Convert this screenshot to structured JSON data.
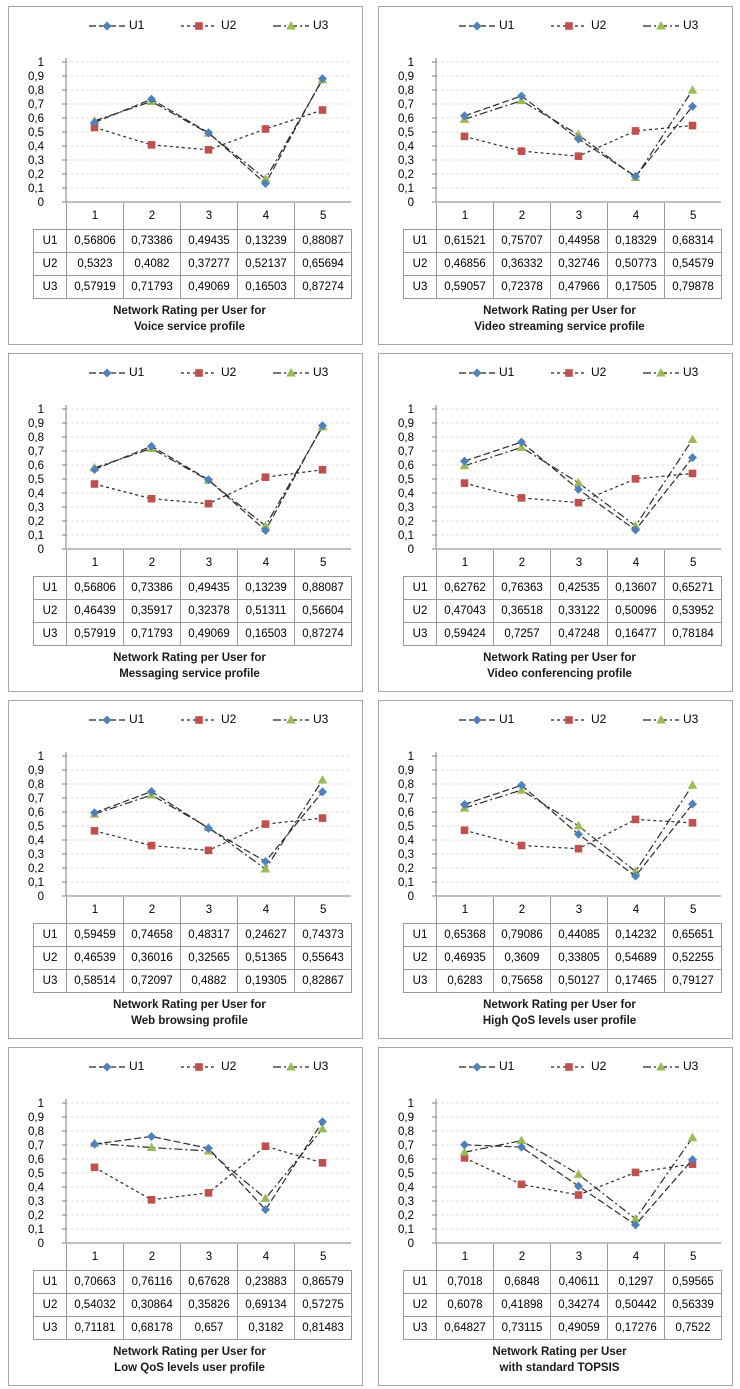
{
  "colors": {
    "U1": "#4f81bd",
    "U2": "#c0504d",
    "U3": "#9bbb59",
    "grid": "#e1e1e1",
    "axis": "#808080"
  },
  "legend": [
    "U1",
    "U2",
    "U3"
  ],
  "chart_data": [
    {
      "type": "line",
      "title_lines": [
        "Network Rating per User for",
        "Voice service profile"
      ],
      "categories": [
        "1",
        "2",
        "3",
        "4",
        "5"
      ],
      "ylim": [
        0,
        1
      ],
      "yticks": [
        "0",
        "0,1",
        "0,2",
        "0,3",
        "0,4",
        "0,5",
        "0,6",
        "0,7",
        "0,8",
        "0,9",
        "1"
      ],
      "grid": true,
      "legend_position": "top",
      "series": [
        {
          "name": "U1",
          "values": [
            0.56806,
            0.73386,
            0.49435,
            0.13239,
            0.88087
          ],
          "labels": [
            "0,56806",
            "0,73386",
            "0,49435",
            "0,13239",
            "0,88087"
          ]
        },
        {
          "name": "U2",
          "values": [
            0.5323,
            0.4082,
            0.37277,
            0.52137,
            0.65694
          ],
          "labels": [
            "0,5323",
            "0,4082",
            "0,37277",
            "0,52137",
            "0,65694"
          ]
        },
        {
          "name": "U3",
          "values": [
            0.57919,
            0.71793,
            0.49069,
            0.16503,
            0.87274
          ],
          "labels": [
            "0,57919",
            "0,71793",
            "0,49069",
            "0,16503",
            "0,87274"
          ]
        }
      ]
    },
    {
      "type": "line",
      "title_lines": [
        "Network Rating per User for",
        "Video streaming service profile"
      ],
      "categories": [
        "1",
        "2",
        "3",
        "4",
        "5"
      ],
      "ylim": [
        0,
        1
      ],
      "yticks": [
        "0",
        "0,1",
        "0,2",
        "0,3",
        "0,4",
        "0,5",
        "0,6",
        "0,7",
        "0,8",
        "0,9",
        "1"
      ],
      "grid": true,
      "legend_position": "top",
      "series": [
        {
          "name": "U1",
          "values": [
            0.61521,
            0.75707,
            0.44958,
            0.18329,
            0.68314
          ],
          "labels": [
            "0,61521",
            "0,75707",
            "0,44958",
            "0,18329",
            "0,68314"
          ]
        },
        {
          "name": "U2",
          "values": [
            0.46856,
            0.36332,
            0.32746,
            0.50773,
            0.54579
          ],
          "labels": [
            "0,46856",
            "0,36332",
            "0,32746",
            "0,50773",
            "0,54579"
          ]
        },
        {
          "name": "U3",
          "values": [
            0.59057,
            0.72378,
            0.47966,
            0.17505,
            0.79878
          ],
          "labels": [
            "0,59057",
            "0,72378",
            "0,47966",
            "0,17505",
            "0,79878"
          ]
        }
      ]
    },
    {
      "type": "line",
      "title_lines": [
        "Network Rating per User for",
        "Messaging service profile"
      ],
      "categories": [
        "1",
        "2",
        "3",
        "4",
        "5"
      ],
      "ylim": [
        0,
        1
      ],
      "yticks": [
        "0",
        "0,1",
        "0,2",
        "0,3",
        "0,4",
        "0,5",
        "0,6",
        "0,7",
        "0,8",
        "0,9",
        "1"
      ],
      "grid": true,
      "legend_position": "top",
      "series": [
        {
          "name": "U1",
          "values": [
            0.56806,
            0.73386,
            0.49435,
            0.13239,
            0.88087
          ],
          "labels": [
            "0,56806",
            "0,73386",
            "0,49435",
            "0,13239",
            "0,88087"
          ]
        },
        {
          "name": "U2",
          "values": [
            0.46439,
            0.35917,
            0.32378,
            0.51311,
            0.56604
          ],
          "labels": [
            "0,46439",
            "0,35917",
            "0,32378",
            "0,51311",
            "0,56604"
          ]
        },
        {
          "name": "U3",
          "values": [
            0.57919,
            0.71793,
            0.49069,
            0.16503,
            0.87274
          ],
          "labels": [
            "0,57919",
            "0,71793",
            "0,49069",
            "0,16503",
            "0,87274"
          ]
        }
      ]
    },
    {
      "type": "line",
      "title_lines": [
        "Network Rating per User for",
        "Video conferencing profile"
      ],
      "categories": [
        "1",
        "2",
        "3",
        "4",
        "5"
      ],
      "ylim": [
        0,
        1
      ],
      "yticks": [
        "0",
        "0,1",
        "0,2",
        "0,3",
        "0,4",
        "0,5",
        "0,6",
        "0,7",
        "0,8",
        "0,9",
        "1"
      ],
      "grid": true,
      "legend_position": "top",
      "series": [
        {
          "name": "U1",
          "values": [
            0.62762,
            0.76363,
            0.42535,
            0.13607,
            0.65271
          ],
          "labels": [
            "0,62762",
            "0,76363",
            "0,42535",
            "0,13607",
            "0,65271"
          ]
        },
        {
          "name": "U2",
          "values": [
            0.47043,
            0.36518,
            0.33122,
            0.50096,
            0.53952
          ],
          "labels": [
            "0,47043",
            "0,36518",
            "0,33122",
            "0,50096",
            "0,53952"
          ]
        },
        {
          "name": "U3",
          "values": [
            0.59424,
            0.7257,
            0.47248,
            0.16477,
            0.78184
          ],
          "labels": [
            "0,59424",
            "0,7257",
            "0,47248",
            "0,16477",
            "0,78184"
          ]
        }
      ]
    },
    {
      "type": "line",
      "title_lines": [
        "Network Rating per User for",
        "Web browsing profile"
      ],
      "categories": [
        "1",
        "2",
        "3",
        "4",
        "5"
      ],
      "ylim": [
        0,
        1
      ],
      "yticks": [
        "0",
        "0,1",
        "0,2",
        "0,3",
        "0,4",
        "0,5",
        "0,6",
        "0,7",
        "0,8",
        "0,9",
        "1"
      ],
      "grid": true,
      "legend_position": "top",
      "series": [
        {
          "name": "U1",
          "values": [
            0.59459,
            0.74658,
            0.48317,
            0.24627,
            0.74373
          ],
          "labels": [
            "0,59459",
            "0,74658",
            "0,48317",
            "0,24627",
            "0,74373"
          ]
        },
        {
          "name": "U2",
          "values": [
            0.46539,
            0.36016,
            0.32565,
            0.51365,
            0.55643
          ],
          "labels": [
            "0,46539",
            "0,36016",
            "0,32565",
            "0,51365",
            "0,55643"
          ]
        },
        {
          "name": "U3",
          "values": [
            0.58514,
            0.72097,
            0.4882,
            0.19305,
            0.82867
          ],
          "labels": [
            "0,58514",
            "0,72097",
            "0,4882",
            "0,19305",
            "0,82867"
          ]
        }
      ]
    },
    {
      "type": "line",
      "title_lines": [
        "Network Rating per User for",
        "High QoS levels user profile"
      ],
      "categories": [
        "1",
        "2",
        "3",
        "4",
        "5"
      ],
      "ylim": [
        0,
        1
      ],
      "yticks": [
        "0",
        "0,1",
        "0,2",
        "0,3",
        "0,4",
        "0,5",
        "0,6",
        "0,7",
        "0,8",
        "0,9",
        "1"
      ],
      "grid": true,
      "legend_position": "top",
      "series": [
        {
          "name": "U1",
          "values": [
            0.65368,
            0.79086,
            0.44085,
            0.14232,
            0.65651
          ],
          "labels": [
            "0,65368",
            "0,79086",
            "0,44085",
            "0,14232",
            "0,65651"
          ]
        },
        {
          "name": "U2",
          "values": [
            0.46935,
            0.3609,
            0.33805,
            0.54689,
            0.52255
          ],
          "labels": [
            "0,46935",
            "0,3609",
            "0,33805",
            "0,54689",
            "0,52255"
          ]
        },
        {
          "name": "U3",
          "values": [
            0.6283,
            0.75658,
            0.50127,
            0.17465,
            0.79127
          ],
          "labels": [
            "0,6283",
            "0,75658",
            "0,50127",
            "0,17465",
            "0,79127"
          ]
        }
      ]
    },
    {
      "type": "line",
      "title_lines": [
        "Network Rating per User for",
        "Low QoS levels user profile"
      ],
      "categories": [
        "1",
        "2",
        "3",
        "4",
        "5"
      ],
      "ylim": [
        0,
        1
      ],
      "yticks": [
        "0",
        "0,1",
        "0,2",
        "0,3",
        "0,4",
        "0,5",
        "0,6",
        "0,7",
        "0,8",
        "0,9",
        "1"
      ],
      "grid": true,
      "legend_position": "top",
      "series": [
        {
          "name": "U1",
          "values": [
            0.70663,
            0.76116,
            0.67628,
            0.23883,
            0.86579
          ],
          "labels": [
            "0,70663",
            "0,76116",
            "0,67628",
            "0,23883",
            "0,86579"
          ]
        },
        {
          "name": "U2",
          "values": [
            0.54032,
            0.30864,
            0.35826,
            0.69134,
            0.57275
          ],
          "labels": [
            "0,54032",
            "0,30864",
            "0,35826",
            "0,69134",
            "0,57275"
          ]
        },
        {
          "name": "U3",
          "values": [
            0.71181,
            0.68178,
            0.657,
            0.3182,
            0.81483
          ],
          "labels": [
            "0,71181",
            "0,68178",
            "0,657",
            "0,3182",
            "0,81483"
          ]
        }
      ]
    },
    {
      "type": "line",
      "title_lines": [
        "Network Rating per User",
        "with standard TOPSIS"
      ],
      "categories": [
        "1",
        "2",
        "3",
        "4",
        "5"
      ],
      "ylim": [
        0,
        1
      ],
      "yticks": [
        "0",
        "0,1",
        "0,2",
        "0,3",
        "0,4",
        "0,5",
        "0,6",
        "0,7",
        "0,8",
        "0,9",
        "1"
      ],
      "grid": true,
      "legend_position": "top",
      "series": [
        {
          "name": "U1",
          "values": [
            0.7018,
            0.6848,
            0.40611,
            0.1297,
            0.59565
          ],
          "labels": [
            "0,7018",
            "0,6848",
            "0,40611",
            "0,1297",
            "0,59565"
          ]
        },
        {
          "name": "U2",
          "values": [
            0.6078,
            0.41898,
            0.34274,
            0.50442,
            0.56339
          ],
          "labels": [
            "0,6078",
            "0,41898",
            "0,34274",
            "0,50442",
            "0,56339"
          ]
        },
        {
          "name": "U3",
          "values": [
            0.64827,
            0.73115,
            0.49059,
            0.17276,
            0.7522
          ],
          "labels": [
            "0,64827",
            "0,73115",
            "0,49059",
            "0,17276",
            "0,7522"
          ]
        }
      ]
    }
  ]
}
